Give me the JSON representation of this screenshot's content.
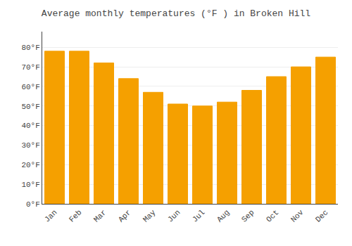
{
  "chart_data": {
    "type": "bar",
    "title": "Average monthly temperatures (°F ) in Broken Hill",
    "categories": [
      "Jan",
      "Feb",
      "Mar",
      "Apr",
      "May",
      "Jun",
      "Jul",
      "Aug",
      "Sep",
      "Oct",
      "Nov",
      "Dec"
    ],
    "values": [
      78,
      78,
      72,
      64,
      57,
      51,
      50,
      52,
      58,
      65,
      70,
      75
    ],
    "color": "#F5A000",
    "ylim": [
      0,
      88
    ],
    "yticks": [
      {
        "value": 0,
        "label": "0°F"
      },
      {
        "value": 10,
        "label": "10°F"
      },
      {
        "value": 20,
        "label": "20°F"
      },
      {
        "value": 30,
        "label": "30°F"
      },
      {
        "value": 40,
        "label": "40°F"
      },
      {
        "value": 50,
        "label": "50°F"
      },
      {
        "value": 60,
        "label": "60°F"
      },
      {
        "value": 70,
        "label": "70°F"
      },
      {
        "value": 80,
        "label": "80°F"
      }
    ],
    "grid": true
  }
}
